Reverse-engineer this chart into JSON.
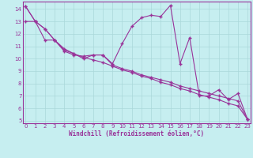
{
  "xlabel": "Windchill (Refroidissement éolien,°C)",
  "bg_color": "#c6eef0",
  "line_color": "#993399",
  "grid_color": "#aad8da",
  "x_ticks": [
    0,
    1,
    2,
    3,
    4,
    5,
    6,
    7,
    8,
    9,
    10,
    11,
    12,
    13,
    14,
    15,
    16,
    17,
    18,
    19,
    20,
    21,
    22,
    23
  ],
  "y_ticks": [
    5,
    6,
    7,
    8,
    9,
    10,
    11,
    12,
    13,
    14
  ],
  "ylim": [
    4.8,
    14.6
  ],
  "xlim": [
    -0.3,
    23.3
  ],
  "series1_y": [
    14.2,
    13.0,
    12.4,
    11.5,
    10.8,
    10.4,
    10.0,
    10.3,
    10.3,
    9.6,
    11.2,
    12.6,
    13.3,
    13.5,
    13.4,
    14.3,
    9.6,
    11.7,
    7.0,
    7.0,
    7.5,
    6.7,
    7.2,
    5.1
  ],
  "series2_y": [
    13.0,
    13.0,
    11.5,
    11.5,
    10.6,
    10.3,
    10.2,
    10.3,
    10.3,
    9.5,
    9.2,
    9.0,
    8.7,
    8.5,
    8.3,
    8.1,
    7.8,
    7.6,
    7.4,
    7.2,
    7.0,
    6.8,
    6.6,
    5.1
  ],
  "series3_y": [
    14.2,
    13.0,
    12.4,
    11.5,
    10.7,
    10.4,
    10.1,
    9.9,
    9.7,
    9.4,
    9.1,
    8.9,
    8.6,
    8.4,
    8.1,
    7.9,
    7.6,
    7.4,
    7.1,
    6.9,
    6.7,
    6.4,
    6.2,
    5.1
  ]
}
